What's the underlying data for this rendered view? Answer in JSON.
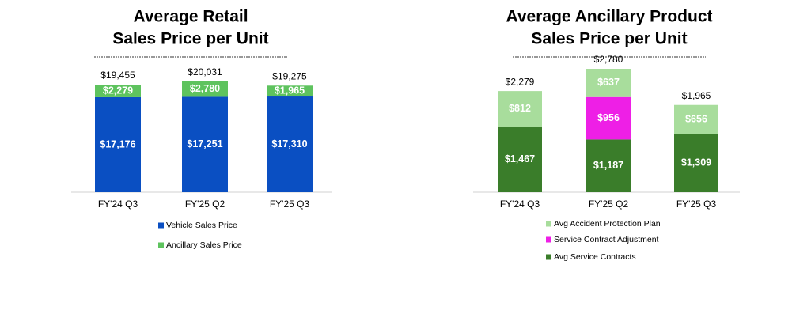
{
  "chart_data": [
    {
      "type": "stacked_bar",
      "title": [
        "Average Retail",
        "Sales Price per Unit"
      ],
      "categories": [
        "FY'24 Q3",
        "FY'25 Q2",
        "FY'25 Q3"
      ],
      "series": [
        {
          "name": "Vehicle Sales Price",
          "color": "#0a4fc2",
          "values": [
            17176,
            17251,
            17310
          ],
          "value_labels": [
            "$17,176",
            "$17,251",
            "$17,310"
          ]
        },
        {
          "name": "Ancillary Sales Price",
          "color": "#5ec35e",
          "values": [
            2279,
            2780,
            1965
          ],
          "value_labels": [
            "$2,279",
            "$2,780",
            "$1,965"
          ]
        }
      ],
      "totals": [
        19455,
        20031,
        19275
      ],
      "total_labels": [
        "$19,455",
        "$20,031",
        "$19,275"
      ],
      "legend_reversed": false
    },
    {
      "type": "stacked_bar",
      "title": [
        "Average Ancillary Product",
        "Sales Price per Unit"
      ],
      "categories": [
        "FY'24 Q3",
        "FY'25 Q2",
        "FY'25 Q3"
      ],
      "series": [
        {
          "name": "Avg Service Contracts",
          "color": "#3a7d2a",
          "values": [
            1467,
            1187,
            1309
          ],
          "value_labels": [
            "$1,467",
            "$1,187",
            "$1,309"
          ]
        },
        {
          "name": "Service Contract Adjustment",
          "color": "#ee1fe6",
          "values": [
            null,
            956,
            null
          ],
          "value_labels": [
            null,
            "$956",
            null
          ]
        },
        {
          "name": "Avg Accident Protection Plan",
          "color": "#a8dd9c",
          "values": [
            812,
            637,
            656
          ],
          "value_labels": [
            "$812",
            "$637",
            "$656"
          ]
        }
      ],
      "totals": [
        2279,
        2780,
        1965
      ],
      "total_labels": [
        "$2,279",
        "$2,780",
        "$1,965"
      ],
      "legend_reversed": true
    }
  ]
}
